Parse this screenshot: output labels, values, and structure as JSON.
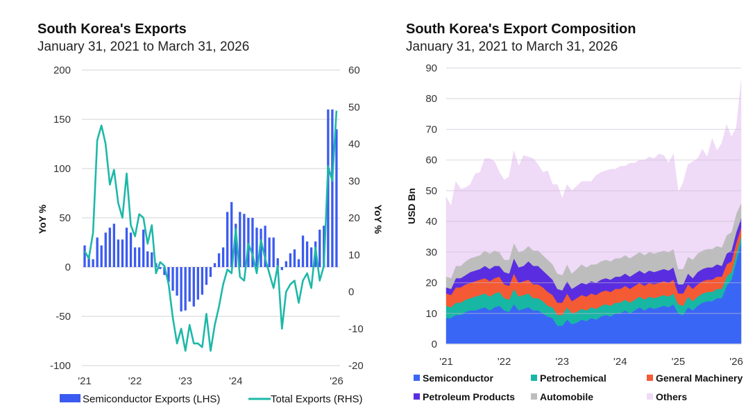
{
  "chart_data": [
    {
      "type": "bar+line",
      "title": "South Korea's Exports",
      "subtitle": "January 31, 2021 to March 31, 2026",
      "ylabel_left": "YoY %",
      "ylabel_right": "YoY %",
      "ylim_left": [
        -100,
        200
      ],
      "ylim_right": [
        -20,
        60
      ],
      "yticks_left": [
        "200",
        "150",
        "100",
        "50",
        "0",
        "-50",
        "-100"
      ],
      "yticks_right": [
        "60",
        "50",
        "40",
        "30",
        "20",
        "10",
        "0",
        "-10",
        "-20"
      ],
      "xticks": [
        "'21",
        "'22",
        "'23",
        "'24",
        "'26"
      ],
      "xtick_months": [
        0,
        12,
        24,
        36,
        60
      ],
      "grid": true,
      "legend_position": "bottom",
      "x_start": "2021-01",
      "series": [
        {
          "name": "Semiconductor Exports (LHS)",
          "type": "bar",
          "axis": "left",
          "color": "#3b5bf0",
          "values": [
            22,
            12,
            8,
            30,
            22,
            35,
            40,
            44,
            28,
            28,
            40,
            35,
            20,
            20,
            38,
            16,
            15,
            4,
            -2,
            -8,
            -15,
            -24,
            -29,
            -45,
            -44,
            -35,
            -40,
            -33,
            -28,
            -18,
            -10,
            4,
            14,
            20,
            56,
            66,
            44,
            56,
            54,
            50,
            50,
            40,
            39,
            42,
            30,
            30,
            9,
            -3,
            6,
            14,
            18,
            8,
            32,
            26,
            20,
            26,
            38,
            42,
            160,
            160,
            140
          ]
        },
        {
          "name": "Total Exports (RHS)",
          "type": "line",
          "axis": "right",
          "color": "#1db8a8",
          "values": [
            11,
            9,
            16,
            41,
            45,
            40,
            29,
            33,
            24,
            20,
            32,
            18,
            15,
            21,
            20,
            13,
            18,
            5,
            8,
            7,
            2,
            -7,
            -14,
            -10,
            -16,
            -9,
            -14,
            -14,
            -15,
            -6,
            -16,
            -9,
            -4,
            2,
            6,
            5,
            17,
            4,
            3,
            13,
            10,
            5,
            14,
            9,
            5,
            1,
            7,
            -10,
            0,
            2,
            3,
            -3,
            3,
            5,
            1,
            12,
            3,
            7,
            34,
            30,
            49
          ]
        }
      ]
    },
    {
      "type": "area",
      "stacked": true,
      "title": "South Korea's Export Composition",
      "subtitle": "January 31, 2021 to March 31, 2026",
      "ylabel": "USD Bn",
      "ylim": [
        0,
        90
      ],
      "yticks": [
        "90",
        "80",
        "70",
        "60",
        "50",
        "40",
        "30",
        "20",
        "10",
        "0"
      ],
      "xticks": [
        "'21",
        "'22",
        "'23",
        "'24",
        "'25",
        "'26"
      ],
      "xtick_months": [
        0,
        12,
        24,
        36,
        48,
        60
      ],
      "grid": true,
      "legend_position": "bottom",
      "x_start": "2021-01",
      "series": [
        {
          "name": "Semiconductor",
          "color": "#3a66f5",
          "values": [
            8.5,
            8.5,
            9.5,
            9.5,
            10.5,
            11,
            11,
            11.5,
            12,
            11,
            12,
            12.5,
            11,
            10.5,
            13,
            11,
            11.5,
            12,
            11,
            11,
            10,
            9,
            8.5,
            6,
            6,
            8,
            6.5,
            7,
            8,
            7.5,
            8.5,
            8,
            9,
            9.5,
            9,
            10,
            10,
            11,
            10,
            11,
            12,
            11,
            12,
            11.5,
            12,
            12.5,
            12,
            13,
            10,
            9.5,
            12,
            11,
            12.5,
            13.5,
            14,
            14,
            15,
            15,
            19,
            21,
            27,
            33
          ]
        },
        {
          "name": "Petrochemical",
          "color": "#17b7a4",
          "values": [
            4,
            3.5,
            4,
            4,
            4,
            4,
            4.5,
            4.5,
            4.5,
            4.5,
            4.5,
            4.5,
            4,
            4,
            5,
            4.5,
            4.5,
            4.5,
            4,
            4,
            4,
            3.5,
            3.5,
            3.5,
            3.5,
            4,
            3.5,
            3.5,
            3.5,
            3.5,
            3.5,
            3.5,
            3.5,
            3.5,
            3.5,
            3.5,
            3.5,
            3.5,
            3.5,
            3.5,
            3.5,
            3.5,
            3.5,
            3.5,
            3.5,
            3.5,
            3.5,
            3.5,
            3,
            3,
            3.5,
            3,
            3,
            3,
            3,
            3,
            3,
            3,
            3,
            2.5,
            2.5,
            2
          ]
        },
        {
          "name": "General Machinery",
          "color": "#f45a33",
          "values": [
            4,
            4,
            5,
            5,
            5,
            5,
            5,
            5,
            5,
            5,
            5,
            5,
            4.5,
            4.5,
            5,
            4.5,
            4.5,
            4.5,
            4.5,
            4.5,
            4.5,
            4.5,
            4,
            4,
            4,
            4.5,
            4,
            4.5,
            4.5,
            4.5,
            4.5,
            4.5,
            4.5,
            4.5,
            4.5,
            4.5,
            4.5,
            4.5,
            4.5,
            4.5,
            4.5,
            4.5,
            4.5,
            4.5,
            4.5,
            4.5,
            4.5,
            4.5,
            3.5,
            4,
            4,
            4,
            4,
            4,
            4,
            4,
            4,
            4,
            4,
            3.5,
            3.5,
            3
          ]
        },
        {
          "name": "Petroleum Products",
          "color": "#5a2ee0",
          "values": [
            2,
            2,
            3,
            3,
            3,
            3.5,
            3.5,
            3.5,
            4,
            4,
            4,
            3.5,
            4,
            4,
            5,
            5,
            5,
            6,
            6,
            6,
            5.5,
            5.5,
            5,
            4.5,
            4,
            4,
            4,
            4,
            4,
            4,
            4,
            4,
            4,
            4,
            4,
            4,
            4,
            4,
            4,
            4,
            4,
            4,
            4,
            4,
            4,
            4,
            4,
            4,
            3,
            3,
            3.5,
            3.5,
            4,
            4,
            4,
            4,
            4,
            3.5,
            3.5,
            3.5,
            3.5,
            3
          ]
        },
        {
          "name": "Automobile",
          "color": "#bdbdbd",
          "values": [
            3.5,
            3.5,
            4,
            4,
            4.5,
            4.5,
            4.5,
            4.5,
            5,
            5,
            5,
            4.5,
            4,
            4.5,
            5,
            5,
            5,
            5,
            5,
            5,
            5,
            5,
            5,
            5,
            5,
            5.5,
            5,
            5.5,
            6,
            5.5,
            5.5,
            6,
            6,
            6,
            6,
            6,
            6,
            6,
            6,
            6,
            6,
            6,
            6,
            6,
            6,
            6,
            6,
            6,
            5,
            5,
            5.5,
            6,
            6,
            6,
            6,
            6,
            6,
            6,
            6,
            6,
            6,
            5
          ]
        },
        {
          "name": "Others",
          "color": "#efdaf7",
          "values": [
            26,
            23.5,
            27.5,
            25,
            24,
            24,
            27,
            27,
            30,
            31,
            29,
            26,
            26,
            27,
            30,
            28,
            31,
            29,
            30,
            28,
            27,
            29,
            26,
            29,
            25,
            26,
            27,
            27,
            27,
            28,
            27,
            29,
            29,
            29,
            30,
            29,
            30,
            29,
            31,
            30,
            30,
            31,
            31,
            31,
            32,
            31,
            29,
            31,
            25,
            28,
            30,
            32,
            31,
            33,
            30,
            36,
            31,
            34,
            36,
            31,
            28,
            40
          ]
        }
      ]
    }
  ],
  "legend_left": [
    "Semiconductor Exports (LHS)",
    "Total Exports (RHS)"
  ],
  "legend_right": [
    "Semiconductor",
    "Petrochemical",
    "General Machinery",
    "Petroleum Products",
    "Automobile",
    "Others"
  ]
}
